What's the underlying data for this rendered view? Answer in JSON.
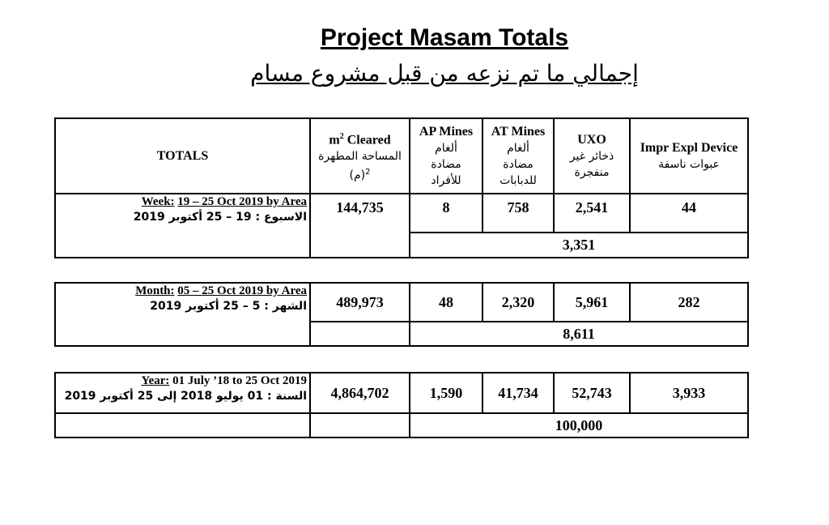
{
  "title": "Project Masam Totals",
  "subtitle": "إجمالي ما تم نزعه من قبل مشروع مسام",
  "header": {
    "totals": "TOTALS",
    "m2_en_pre": "m",
    "m2_sup": "2",
    "m2_en_post": " Cleared",
    "m2_ar": "المساحة المطهرة",
    "m2_ar2_sup": "2",
    "m2_ar2": "(م)",
    "ap_en": "AP Mines",
    "ap_ar1": "ألغام",
    "ap_ar2": "مضادة",
    "ap_ar3": "للأفراد",
    "at_en": "AT Mines",
    "at_ar1": "ألغام",
    "at_ar2": "مضادة",
    "at_ar3": "للدبابات",
    "uxo_en": "UXO",
    "uxo_ar1": "ذخائر غير",
    "uxo_ar2": "منفجرة",
    "ied_en": "Impr Expl Device",
    "ied_ar": "عبوات ناسفة"
  },
  "week": {
    "label_key": "Week:",
    "label_range": "19 – 25 Oct 2019 by Area",
    "label_ar": "الاسبوع : 19 – 25 أكتوبر   2019",
    "m2": "144,735",
    "ap": "8",
    "at": "758",
    "uxo": "2,541",
    "ied": "44",
    "total": "3,351"
  },
  "month": {
    "label_key": "Month:",
    "label_range": "05 – 25 Oct 2019 by Area",
    "label_ar": "الشهر :  5 – 25 أكتوبر 2019",
    "m2": "489,973",
    "ap": "48",
    "at": "2,320",
    "uxo": "5,961",
    "ied": "282",
    "total": "8,611"
  },
  "year": {
    "label_key": "Year:",
    "label_range": " 01 July ’18 to 25 Oct 2019",
    "label_ar": "السنة : 01 يوليو 2018 إلى 25 أكتوبر 2019",
    "m2": "4,864,702",
    "ap": "1,590",
    "at": "41,734",
    "uxo": "52,743",
    "ied": "3,933",
    "total": "100,000"
  }
}
